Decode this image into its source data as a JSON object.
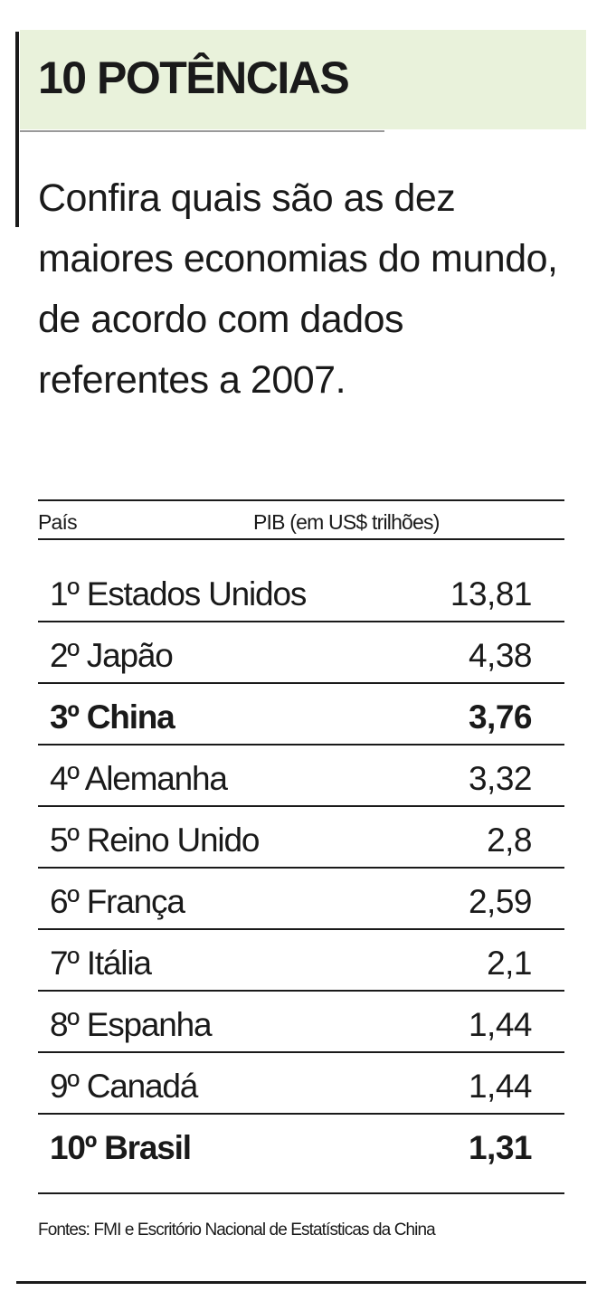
{
  "header": {
    "title": "10 POTÊNCIAS",
    "intro": "Confira quais são as dez maiores economias do mundo, de acordo com dados referentes a 2007."
  },
  "table": {
    "columns": [
      "País",
      "PIB (em US$ trilhões)"
    ],
    "rows": [
      [
        "1º Estados Unidos",
        "13,81"
      ],
      [
        "2º Japão",
        "4,38"
      ],
      [
        "3º China",
        "3,76"
      ],
      [
        "4º Alemanha",
        "3,32"
      ],
      [
        "5º Reino Unido",
        "2,8"
      ],
      [
        "6º França",
        "2,59"
      ],
      [
        "7º Itália",
        "2,1"
      ],
      [
        "8º Espanha",
        "1,44"
      ],
      [
        "9º Canadá",
        "1,44"
      ],
      [
        "10º Brasil",
        "1,31"
      ]
    ]
  },
  "footer": {
    "source": "Fontes: FMI e Escritório Nacional de Estatísticas da China"
  }
}
